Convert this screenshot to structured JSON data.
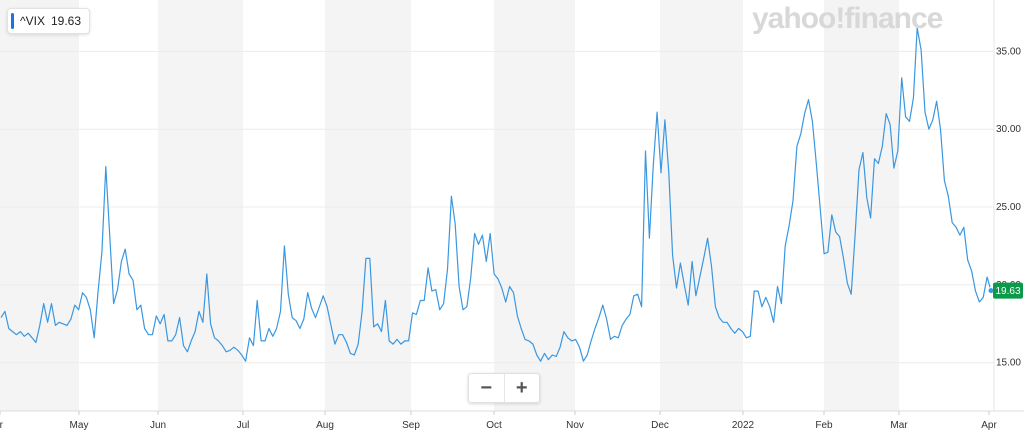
{
  "watermark": "yahoo!finance",
  "ticker": {
    "symbol": "^VIX",
    "value": "19.63"
  },
  "zoom": {
    "minus": "−",
    "plus": "+"
  },
  "colors": {
    "line": "#3a97e0",
    "band": "#f4f4f4",
    "badge": "#0a9a4a",
    "ticker_accent": "#1a73e8"
  },
  "chart_data": {
    "type": "line",
    "title": "",
    "xlabel": "",
    "ylabel": "",
    "ylim": [
      11.9,
      38.3
    ],
    "y_ticks": [
      "15.00",
      "20.00",
      "25.00",
      "30.00",
      "35.00"
    ],
    "x_ticks": [
      "Apr",
      "May",
      "Jun",
      "Jul",
      "Aug",
      "Sep",
      "Oct",
      "Nov",
      "Dec",
      "2022",
      "Feb",
      "Mar",
      "Apr"
    ],
    "last_value_label": "19.63",
    "grid": true,
    "series": [
      {
        "values": [
          17.9,
          18.3,
          17.2,
          17.0,
          16.8,
          17.0,
          16.7,
          16.9,
          16.6,
          16.3,
          17.4,
          18.8,
          17.6,
          18.8,
          17.4,
          17.6,
          17.5,
          17.4,
          17.8,
          18.7,
          18.4,
          19.5,
          19.2,
          18.4,
          16.6,
          19.6,
          22.1,
          27.6,
          23.2,
          18.8,
          19.7,
          21.5,
          22.3,
          20.7,
          20.3,
          18.4,
          18.7,
          17.2,
          16.8,
          16.8,
          18.0,
          17.5,
          18.1,
          16.4,
          16.4,
          16.8,
          17.9,
          16.1,
          15.7,
          16.4,
          17.0,
          18.3,
          17.6,
          20.7,
          17.5,
          16.6,
          16.4,
          16.1,
          15.7,
          15.8,
          16.0,
          15.8,
          15.5,
          15.1,
          16.6,
          16.1,
          19.0,
          16.4,
          16.4,
          17.2,
          16.7,
          17.2,
          18.3,
          22.5,
          19.4,
          17.9,
          17.7,
          17.2,
          17.8,
          19.5,
          18.5,
          17.9,
          18.6,
          19.3,
          18.6,
          17.4,
          16.2,
          16.8,
          16.8,
          16.3,
          15.6,
          15.5,
          16.2,
          18.3,
          21.7,
          21.7,
          17.3,
          17.5,
          17.0,
          19.0,
          16.4,
          16.2,
          16.5,
          16.2,
          16.4,
          16.4,
          18.2,
          18.1,
          19.0,
          19.0,
          21.1,
          19.6,
          19.7,
          18.4,
          18.8,
          21.0,
          25.7,
          23.9,
          19.9,
          18.4,
          18.6,
          20.5,
          23.3,
          22.6,
          23.2,
          21.5,
          23.3,
          20.7,
          20.4,
          19.8,
          18.9,
          19.9,
          19.5,
          18.0,
          17.2,
          16.5,
          16.4,
          16.2,
          15.5,
          15.1,
          15.6,
          15.2,
          15.5,
          15.4,
          16.0,
          17.0,
          16.6,
          16.4,
          16.5,
          16.0,
          15.1,
          15.5,
          16.4,
          17.2,
          17.9,
          18.7,
          17.8,
          16.5,
          16.7,
          16.6,
          17.4,
          17.8,
          18.1,
          19.3,
          19.4,
          18.6,
          28.6,
          23.0,
          27.6,
          31.1,
          27.2,
          30.6,
          27.2,
          21.9,
          19.8,
          21.4,
          20.0,
          18.7,
          21.5,
          19.3,
          20.5,
          21.7,
          23.0,
          21.2,
          18.6,
          17.9,
          17.6,
          17.6,
          17.2,
          16.9,
          17.2,
          17.0,
          16.6,
          16.7,
          19.6,
          19.6,
          18.6,
          19.2,
          18.6,
          17.6,
          19.9,
          18.8,
          22.5,
          23.8,
          25.4,
          28.9,
          29.7,
          31.0,
          31.9,
          30.5,
          27.8,
          24.9,
          22.0,
          22.1,
          24.5,
          23.4,
          23.1,
          21.7,
          20.1,
          19.4,
          23.2,
          27.4,
          28.5,
          25.6,
          24.3,
          28.1,
          27.8,
          28.9,
          31.0,
          30.3,
          27.5,
          28.6,
          33.3,
          30.8,
          30.5,
          32.0,
          36.5,
          35.1,
          31.1,
          30.0,
          30.6,
          31.8,
          30.0,
          26.7,
          25.7,
          24.0,
          23.7,
          23.2,
          23.7,
          21.6,
          20.9,
          19.6,
          18.9,
          19.2,
          20.5,
          19.63
        ]
      }
    ]
  }
}
